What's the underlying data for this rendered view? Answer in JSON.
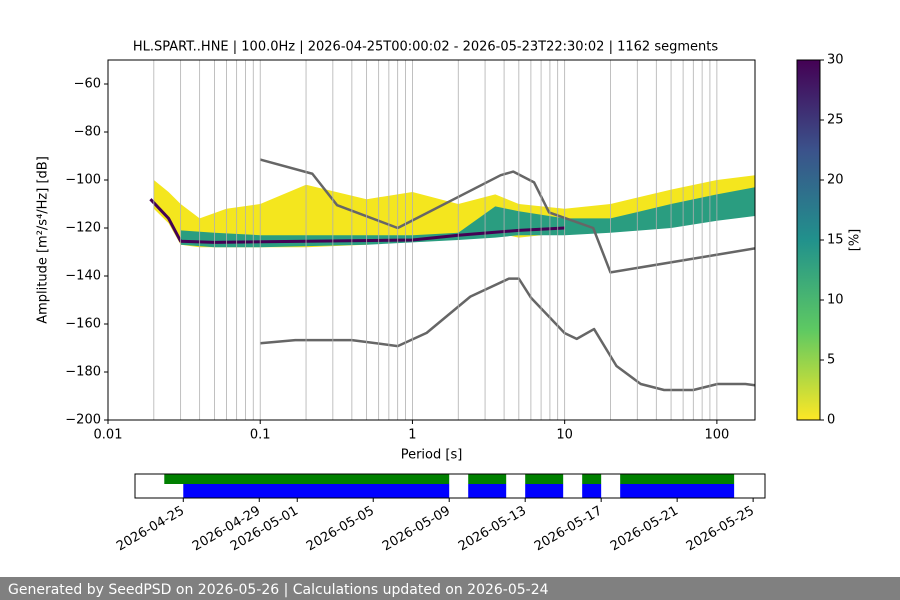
{
  "chart_data": [
    {
      "type": "psd",
      "title": "HL.SPART..HNE | 100.0Hz | 2026-04-25T00:00:02 - 2026-05-23T22:30:02 | 1162 segments",
      "xlabel": "Period [s]",
      "ylabel": "Amplitude [m²/s⁴/Hz] [dB]",
      "log_x": true,
      "xlim": [
        0.01,
        178
      ],
      "ylim": [
        -200,
        -50
      ],
      "xticks": [
        0.01,
        0.1,
        1,
        10,
        100
      ],
      "xgrid": [
        0.02,
        0.03,
        0.04,
        0.05,
        0.06,
        0.07,
        0.08,
        0.09,
        0.1,
        0.2,
        0.3,
        0.4,
        0.5,
        0.6,
        0.7,
        0.8,
        0.9,
        1,
        2,
        3,
        4,
        5,
        6,
        7,
        8,
        9,
        10,
        20,
        30,
        40,
        50,
        60,
        70,
        80,
        90,
        100
      ],
      "yticks": [
        {
          "value": -60,
          "label": "−60"
        },
        {
          "value": -80,
          "label": "−80"
        },
        {
          "value": -100,
          "label": "−100"
        },
        {
          "value": -120,
          "label": "−120"
        },
        {
          "value": -140,
          "label": "−140"
        },
        {
          "value": -160,
          "label": "−160"
        },
        {
          "value": -180,
          "label": "−180"
        },
        {
          "value": -200,
          "label": "−200"
        }
      ],
      "density_bands": [
        {
          "color": "#f4e61e",
          "x": [
            0.02,
            0.025,
            0.03,
            0.04,
            0.06,
            0.1,
            0.2,
            0.5,
            1,
            2,
            3.5,
            5,
            10,
            20,
            50,
            100,
            178
          ],
          "upper": [
            -100,
            -105,
            -110,
            -116,
            -112,
            -110,
            -102,
            -108,
            -105,
            -110,
            -106,
            -110,
            -112,
            -110,
            -104,
            -100,
            -98
          ],
          "lower": [
            -112,
            -118,
            -127,
            -128,
            -128,
            -128,
            -128,
            -127,
            -125,
            -123,
            -122,
            -124,
            -122,
            -120,
            -116,
            -114,
            -112
          ]
        },
        {
          "color": "#2a9d80",
          "x": [
            0.03,
            0.05,
            0.1,
            0.5,
            1,
            2,
            3.5,
            5,
            10,
            20,
            50,
            100,
            178
          ],
          "upper": [
            -121,
            -122,
            -123,
            -123,
            -123,
            -122,
            -111,
            -113,
            -116,
            -116,
            -110,
            -106,
            -103
          ],
          "lower": [
            -127,
            -128,
            -128,
            -127,
            -126,
            -125,
            -124,
            -123,
            -123,
            -122,
            -120,
            -117,
            -115
          ]
        }
      ],
      "mode_line": {
        "color": "#440154",
        "x": [
          0.019,
          0.025,
          0.03,
          0.05,
          0.2,
          1,
          2,
          5,
          10
        ],
        "values": [
          -108,
          -116,
          -125.5,
          -126,
          -125.5,
          -125,
          -123,
          -121,
          -120
        ]
      },
      "noise_models": [
        {
          "color": "#666666",
          "x": [
            0.1,
            0.22,
            0.32,
            0.8,
            3.8,
            4.6,
            6.3,
            7.9,
            15.4,
            20,
            178
          ],
          "values": [
            -91.5,
            -97.4,
            -110.5,
            -120,
            -98,
            -96.5,
            -101,
            -113.5,
            -120,
            -138.5,
            -128.5
          ]
        },
        {
          "color": "#666666",
          "x": [
            0.1,
            0.17,
            0.4,
            0.8,
            1.24,
            2.4,
            4.3,
            5,
            6,
            10,
            12,
            15.6,
            21.9,
            31.6,
            45,
            70,
            101,
            154,
            178
          ],
          "values": [
            -168,
            -166.7,
            -166.7,
            -169.2,
            -163.7,
            -148.6,
            -141.1,
            -141.1,
            -149,
            -163.8,
            -166.2,
            -162.1,
            -177.5,
            -185,
            -187.5,
            -187.5,
            -185,
            -185,
            -185.5
          ]
        }
      ]
    },
    {
      "type": "colorbar",
      "label": "[%]",
      "lim": [
        0,
        30
      ],
      "ticks": [
        0,
        5,
        10,
        15,
        20,
        25,
        30
      ],
      "colormap": [
        "#fde725",
        "#5ec962",
        "#21918c",
        "#3b528b",
        "#440154"
      ]
    },
    {
      "type": "timeline",
      "xlim": [
        "2026-04-22T11:00",
        "2026-05-25T15:00"
      ],
      "xticks": [
        "2026-04-25",
        "2026-04-29",
        "2026-05-01",
        "2026-05-05",
        "2026-05-09",
        "2026-05-13",
        "2026-05-17",
        "2026-05-21",
        "2026-05-25"
      ],
      "rows": [
        {
          "color": "#008000",
          "segments": [
            [
              "2026-04-24",
              "2026-05-09"
            ],
            [
              "2026-05-10",
              "2026-05-12"
            ],
            [
              "2026-05-13",
              "2026-05-15"
            ],
            [
              "2026-05-16",
              "2026-05-17"
            ],
            [
              "2026-05-18",
              "2026-05-24"
            ]
          ]
        },
        {
          "color": "#0000ff",
          "segments": [
            [
              "2026-04-25",
              "2026-05-09"
            ],
            [
              "2026-05-10",
              "2026-05-12"
            ],
            [
              "2026-05-13",
              "2026-05-15"
            ],
            [
              "2026-05-16",
              "2026-05-17"
            ],
            [
              "2026-05-18",
              "2026-05-24"
            ]
          ]
        }
      ]
    }
  ],
  "footer": "Generated by SeedPSD on 2026-05-26 | Calculations updated on 2026-05-24"
}
